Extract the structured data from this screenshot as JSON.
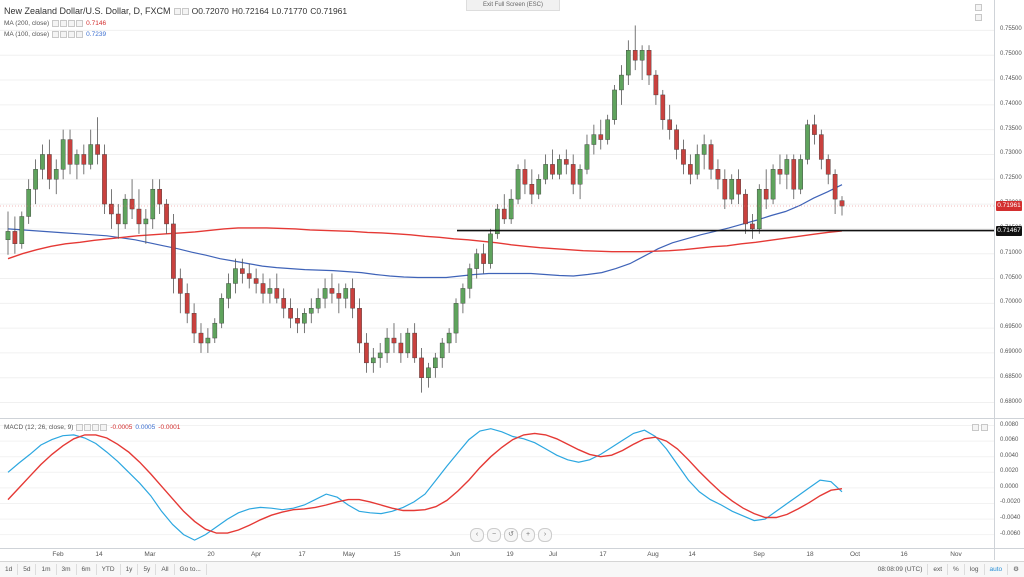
{
  "top_bar": {
    "exit_label": "Exit Full Screen (ESC)"
  },
  "legend": {
    "symbol": "New Zealand Dollar/U.S. Dollar, D, FXCM",
    "open_label": "O",
    "open": "0.72070",
    "high_label": "H",
    "high": "0.72164",
    "low_label": "L",
    "low": "0.71770",
    "close_label": "C",
    "close": "0.71961",
    "ma200_label": "MA (200, close)",
    "ma200_value": "0.7146",
    "ma100_label": "MA (100, close)",
    "ma100_value": "0.7239"
  },
  "macd_legend": {
    "label": "MACD (12, 26, close, 9)",
    "v1": "-0.0005",
    "v2": "0.0005",
    "v3": "-0.0001"
  },
  "price_tags": {
    "current": "0.71961",
    "line": "0.71467"
  },
  "colors": {
    "up": "#5fa35d",
    "down": "#c9413e",
    "ma200": "#e53935",
    "ma100": "#3f63b8",
    "macd": "#2ca7e0",
    "signal": "#e53935",
    "current_tag": "#d32f2f",
    "line_tag": "#111111"
  },
  "y_axis_labels": [
    "0.75500",
    "0.75000",
    "0.74500",
    "0.74000",
    "0.73500",
    "0.73000",
    "0.72500",
    "0.72000",
    "0.71500",
    "0.71000",
    "0.70500",
    "0.70000",
    "0.69500",
    "0.69000",
    "0.68500",
    "0.68000"
  ],
  "macd_axis_labels": [
    "0.0080",
    "0.0060",
    "0.0040",
    "0.0020",
    "0.0000",
    "-0.0020",
    "-0.0040",
    "-0.0060"
  ],
  "x_axis_labels": [
    "Feb",
    "14",
    "Mar",
    "20",
    "Apr",
    "17",
    "May",
    "15",
    "Jun",
    "19",
    "Jul",
    "17",
    "Aug",
    "14",
    "Sep",
    "18",
    "Oct",
    "16",
    "Nov"
  ],
  "timeframes": [
    "1d",
    "5d",
    "1m",
    "3m",
    "6m",
    "YTD",
    "1y",
    "5y",
    "All",
    "Go to..."
  ],
  "bottom_right": {
    "clock": "08:08:09 (UTC)",
    "ext": "ext",
    "percent": "%",
    "log": "log",
    "auto": "auto"
  },
  "icons": {
    "nav": [
      "left-arrow-icon",
      "minus-icon",
      "reset-icon",
      "plus-icon",
      "right-arrow-icon"
    ],
    "settings": "gear-icon"
  },
  "chart_data": {
    "type": "candlestick",
    "price_range": [
      0.6785,
      0.7575
    ],
    "macd_range": [
      -0.0072,
      0.0082
    ],
    "horizontal_line": 0.71467,
    "candles": [
      [
        0.7128,
        0.7185,
        0.7098,
        0.7145
      ],
      [
        0.7145,
        0.7175,
        0.71,
        0.712
      ],
      [
        0.712,
        0.7185,
        0.711,
        0.7175
      ],
      [
        0.7175,
        0.725,
        0.716,
        0.723
      ],
      [
        0.723,
        0.729,
        0.72,
        0.727
      ],
      [
        0.727,
        0.732,
        0.725,
        0.73
      ],
      [
        0.73,
        0.733,
        0.723,
        0.725
      ],
      [
        0.725,
        0.729,
        0.722,
        0.727
      ],
      [
        0.727,
        0.735,
        0.725,
        0.733
      ],
      [
        0.733,
        0.735,
        0.726,
        0.728
      ],
      [
        0.728,
        0.731,
        0.725,
        0.73
      ],
      [
        0.73,
        0.732,
        0.726,
        0.728
      ],
      [
        0.728,
        0.735,
        0.727,
        0.732
      ],
      [
        0.732,
        0.7375,
        0.728,
        0.73
      ],
      [
        0.73,
        0.732,
        0.718,
        0.72
      ],
      [
        0.72,
        0.723,
        0.715,
        0.718
      ],
      [
        0.718,
        0.72,
        0.713,
        0.716
      ],
      [
        0.716,
        0.722,
        0.715,
        0.721
      ],
      [
        0.721,
        0.725,
        0.717,
        0.719
      ],
      [
        0.719,
        0.723,
        0.714,
        0.716
      ],
      [
        0.716,
        0.719,
        0.712,
        0.717
      ],
      [
        0.717,
        0.725,
        0.715,
        0.723
      ],
      [
        0.723,
        0.725,
        0.718,
        0.72
      ],
      [
        0.72,
        0.721,
        0.714,
        0.716
      ],
      [
        0.716,
        0.718,
        0.702,
        0.705
      ],
      [
        0.705,
        0.707,
        0.698,
        0.702
      ],
      [
        0.702,
        0.704,
        0.696,
        0.698
      ],
      [
        0.698,
        0.7,
        0.692,
        0.694
      ],
      [
        0.694,
        0.696,
        0.69,
        0.692
      ],
      [
        0.692,
        0.695,
        0.69,
        0.693
      ],
      [
        0.693,
        0.697,
        0.692,
        0.696
      ],
      [
        0.696,
        0.702,
        0.695,
        0.701
      ],
      [
        0.701,
        0.706,
        0.699,
        0.704
      ],
      [
        0.704,
        0.709,
        0.702,
        0.707
      ],
      [
        0.707,
        0.709,
        0.704,
        0.706
      ],
      [
        0.706,
        0.708,
        0.703,
        0.705
      ],
      [
        0.705,
        0.707,
        0.702,
        0.704
      ],
      [
        0.704,
        0.706,
        0.7,
        0.702
      ],
      [
        0.702,
        0.705,
        0.7,
        0.703
      ],
      [
        0.703,
        0.706,
        0.7,
        0.701
      ],
      [
        0.701,
        0.703,
        0.697,
        0.699
      ],
      [
        0.699,
        0.701,
        0.695,
        0.697
      ],
      [
        0.697,
        0.699,
        0.694,
        0.696
      ],
      [
        0.696,
        0.699,
        0.694,
        0.698
      ],
      [
        0.698,
        0.701,
        0.696,
        0.699
      ],
      [
        0.699,
        0.703,
        0.698,
        0.701
      ],
      [
        0.701,
        0.705,
        0.699,
        0.703
      ],
      [
        0.703,
        0.706,
        0.7,
        0.702
      ],
      [
        0.702,
        0.704,
        0.698,
        0.701
      ],
      [
        0.701,
        0.704,
        0.699,
        0.703
      ],
      [
        0.703,
        0.705,
        0.697,
        0.699
      ],
      [
        0.699,
        0.701,
        0.69,
        0.692
      ],
      [
        0.692,
        0.694,
        0.686,
        0.688
      ],
      [
        0.688,
        0.691,
        0.686,
        0.689
      ],
      [
        0.689,
        0.692,
        0.687,
        0.69
      ],
      [
        0.69,
        0.695,
        0.688,
        0.693
      ],
      [
        0.693,
        0.696,
        0.69,
        0.692
      ],
      [
        0.692,
        0.694,
        0.688,
        0.69
      ],
      [
        0.69,
        0.695,
        0.689,
        0.694
      ],
      [
        0.694,
        0.696,
        0.688,
        0.689
      ],
      [
        0.689,
        0.691,
        0.682,
        0.685
      ],
      [
        0.685,
        0.688,
        0.683,
        0.687
      ],
      [
        0.687,
        0.69,
        0.685,
        0.689
      ],
      [
        0.689,
        0.693,
        0.687,
        0.692
      ],
      [
        0.692,
        0.695,
        0.69,
        0.694
      ],
      [
        0.694,
        0.701,
        0.692,
        0.7
      ],
      [
        0.7,
        0.704,
        0.698,
        0.703
      ],
      [
        0.703,
        0.708,
        0.701,
        0.707
      ],
      [
        0.707,
        0.711,
        0.705,
        0.71
      ],
      [
        0.71,
        0.712,
        0.706,
        0.708
      ],
      [
        0.708,
        0.715,
        0.707,
        0.714
      ],
      [
        0.714,
        0.72,
        0.713,
        0.719
      ],
      [
        0.719,
        0.722,
        0.716,
        0.717
      ],
      [
        0.717,
        0.723,
        0.716,
        0.721
      ],
      [
        0.721,
        0.728,
        0.72,
        0.727
      ],
      [
        0.727,
        0.729,
        0.722,
        0.724
      ],
      [
        0.724,
        0.727,
        0.72,
        0.722
      ],
      [
        0.722,
        0.726,
        0.721,
        0.725
      ],
      [
        0.725,
        0.73,
        0.724,
        0.728
      ],
      [
        0.728,
        0.731,
        0.725,
        0.726
      ],
      [
        0.726,
        0.73,
        0.725,
        0.729
      ],
      [
        0.729,
        0.731,
        0.726,
        0.728
      ],
      [
        0.728,
        0.73,
        0.722,
        0.724
      ],
      [
        0.724,
        0.728,
        0.721,
        0.727
      ],
      [
        0.727,
        0.734,
        0.726,
        0.732
      ],
      [
        0.732,
        0.736,
        0.73,
        0.734
      ],
      [
        0.734,
        0.737,
        0.731,
        0.733
      ],
      [
        0.733,
        0.738,
        0.732,
        0.737
      ],
      [
        0.737,
        0.744,
        0.736,
        0.743
      ],
      [
        0.743,
        0.748,
        0.74,
        0.746
      ],
      [
        0.746,
        0.753,
        0.744,
        0.751
      ],
      [
        0.751,
        0.756,
        0.747,
        0.749
      ],
      [
        0.749,
        0.752,
        0.745,
        0.751
      ],
      [
        0.751,
        0.752,
        0.744,
        0.746
      ],
      [
        0.746,
        0.747,
        0.74,
        0.742
      ],
      [
        0.742,
        0.743,
        0.735,
        0.737
      ],
      [
        0.737,
        0.74,
        0.733,
        0.735
      ],
      [
        0.735,
        0.736,
        0.729,
        0.731
      ],
      [
        0.731,
        0.733,
        0.726,
        0.728
      ],
      [
        0.728,
        0.73,
        0.724,
        0.726
      ],
      [
        0.726,
        0.732,
        0.725,
        0.73
      ],
      [
        0.73,
        0.734,
        0.727,
        0.732
      ],
      [
        0.732,
        0.733,
        0.725,
        0.727
      ],
      [
        0.727,
        0.729,
        0.723,
        0.725
      ],
      [
        0.725,
        0.727,
        0.719,
        0.721
      ],
      [
        0.721,
        0.726,
        0.72,
        0.725
      ],
      [
        0.725,
        0.727,
        0.72,
        0.722
      ],
      [
        0.722,
        0.723,
        0.714,
        0.716
      ],
      [
        0.716,
        0.718,
        0.713,
        0.715
      ],
      [
        0.715,
        0.724,
        0.714,
        0.723
      ],
      [
        0.723,
        0.727,
        0.719,
        0.721
      ],
      [
        0.721,
        0.728,
        0.72,
        0.727
      ],
      [
        0.727,
        0.73,
        0.724,
        0.726
      ],
      [
        0.726,
        0.73,
        0.723,
        0.729
      ],
      [
        0.729,
        0.73,
        0.721,
        0.723
      ],
      [
        0.723,
        0.73,
        0.722,
        0.729
      ],
      [
        0.729,
        0.737,
        0.728,
        0.736
      ],
      [
        0.736,
        0.738,
        0.732,
        0.734
      ],
      [
        0.734,
        0.735,
        0.727,
        0.729
      ],
      [
        0.729,
        0.73,
        0.724,
        0.726
      ],
      [
        0.726,
        0.727,
        0.718,
        0.721
      ],
      [
        0.7207,
        0.7216,
        0.7177,
        0.7196
      ]
    ],
    "ma200": [
      0.709,
      0.71,
      0.7108,
      0.7115,
      0.712,
      0.7123,
      0.7127,
      0.713,
      0.7133,
      0.7136,
      0.7138,
      0.714,
      0.7142,
      0.7144,
      0.7147,
      0.715,
      0.7152,
      0.7152,
      0.7152,
      0.7151,
      0.715,
      0.7148,
      0.7147,
      0.7146,
      0.7145,
      0.7143,
      0.7142,
      0.714,
      0.7138,
      0.7135,
      0.7133,
      0.713,
      0.7128,
      0.7125,
      0.7122,
      0.7118,
      0.7115,
      0.7112,
      0.711,
      0.7108,
      0.7106,
      0.7105,
      0.7104,
      0.7104,
      0.7104,
      0.7105,
      0.7106,
      0.7108,
      0.7111,
      0.7114,
      0.7116,
      0.712,
      0.7123,
      0.7127,
      0.7131,
      0.7135,
      0.7139,
      0.7143,
      0.7146
    ],
    "ma100": [
      0.715,
      0.7148,
      0.7146,
      0.7144,
      0.7142,
      0.714,
      0.7138,
      0.7136,
      0.7132,
      0.7128,
      0.7122,
      0.7116,
      0.711,
      0.7103,
      0.7097,
      0.709,
      0.7085,
      0.708,
      0.7075,
      0.7072,
      0.707,
      0.7068,
      0.7067,
      0.7066,
      0.7064,
      0.7062,
      0.7058,
      0.7055,
      0.7053,
      0.7052,
      0.7052,
      0.7052,
      0.7055,
      0.7058,
      0.706,
      0.706,
      0.706,
      0.706,
      0.7058,
      0.7056,
      0.7055,
      0.7058,
      0.7062,
      0.707,
      0.708,
      0.7095,
      0.711,
      0.7122,
      0.713,
      0.7138,
      0.7145,
      0.7152,
      0.716,
      0.7168,
      0.7177,
      0.7185,
      0.7197,
      0.7212,
      0.7225,
      0.7239
    ],
    "macd": [
      0.002,
      0.0032,
      0.0043,
      0.0055,
      0.0062,
      0.0067,
      0.0068,
      0.0064,
      0.0057,
      0.0046,
      0.0034,
      0.002,
      0.0006,
      -0.001,
      -0.003,
      -0.0047,
      -0.006,
      -0.0067,
      -0.006,
      -0.005,
      -0.004,
      -0.0032,
      -0.0027,
      -0.0025,
      -0.0026,
      -0.0028,
      -0.0026,
      -0.0022,
      -0.0015,
      -0.0008,
      -0.0012,
      -0.0022,
      -0.003,
      -0.0032,
      -0.0033,
      -0.003,
      -0.0025,
      -0.0018,
      -0.0008,
      0.001,
      0.0028,
      0.0045,
      0.0062,
      0.0073,
      0.0076,
      0.0072,
      0.0066,
      0.0063,
      0.0058,
      0.005,
      0.0042,
      0.0036,
      0.0033,
      0.0036,
      0.0043,
      0.0052,
      0.0061,
      0.007,
      0.0074,
      0.0066,
      0.005,
      0.003,
      0.001,
      -0.0005,
      -0.0015,
      -0.0022,
      -0.003,
      -0.0036,
      -0.0042,
      -0.004,
      -0.003,
      -0.002,
      -0.001,
      0.0,
      0.001,
      0.0008,
      -0.0005
    ],
    "signal": [
      -0.0015,
      0.0,
      0.0015,
      0.003,
      0.0043,
      0.0054,
      0.0063,
      0.0068,
      0.0068,
      0.0064,
      0.0056,
      0.0046,
      0.0033,
      0.0018,
      0.0002,
      -0.0014,
      -0.003,
      -0.0043,
      -0.0053,
      -0.0058,
      -0.0058,
      -0.0054,
      -0.0048,
      -0.0041,
      -0.0035,
      -0.0031,
      -0.0028,
      -0.0027,
      -0.0025,
      -0.0022,
      -0.0018,
      -0.0015,
      -0.0015,
      -0.0018,
      -0.0022,
      -0.0026,
      -0.0029,
      -0.0029,
      -0.0028,
      -0.0024,
      -0.0016,
      -0.0004,
      0.001,
      0.0026,
      0.004,
      0.0052,
      0.0062,
      0.0068,
      0.007,
      0.0068,
      0.0063,
      0.0056,
      0.0049,
      0.0043,
      0.004,
      0.0042,
      0.0048,
      0.0056,
      0.0063,
      0.0065,
      0.006,
      0.005,
      0.0036,
      0.0021,
      0.0007,
      -0.0006,
      -0.0017,
      -0.0026,
      -0.0033,
      -0.0038,
      -0.0038,
      -0.0034,
      -0.0027,
      -0.0019,
      -0.001,
      -0.0003,
      -0.0001
    ]
  }
}
